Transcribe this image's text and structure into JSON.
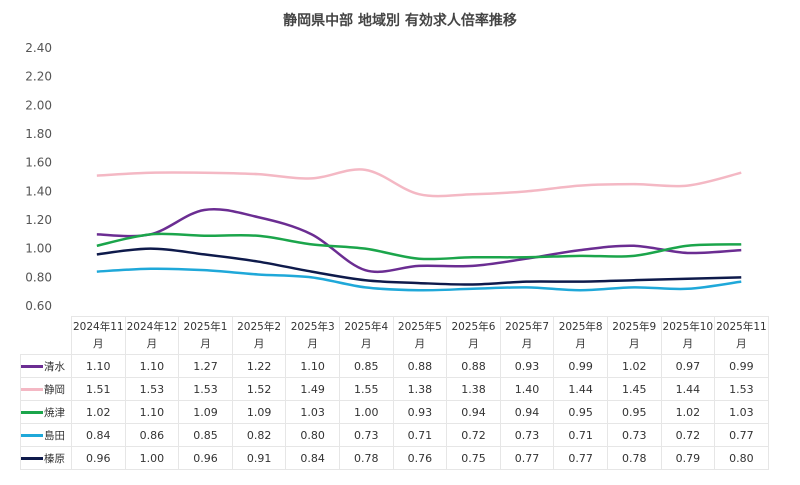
{
  "chart_data": {
    "type": "line",
    "title": "静岡県中部 地域別 有効求人倍率推移",
    "xlabel": "",
    "ylabel": "",
    "ylim": [
      0.6,
      2.4
    ],
    "yticks": [
      "2.40",
      "2.20",
      "2.00",
      "1.80",
      "1.60",
      "1.40",
      "1.20",
      "1.00",
      "0.80",
      "0.60"
    ],
    "grid": false,
    "legend": "table-bottom",
    "categories": [
      "2024年11月",
      "2024年12月",
      "2025年1月",
      "2025年2月",
      "2025年3月",
      "2025年4月",
      "2025年5月",
      "2025年6月",
      "2025年7月",
      "2025年8月",
      "2025年9月",
      "2025年10月",
      "2025年11月"
    ],
    "series": [
      {
        "name": "清水",
        "color": "#6b2d92",
        "values": [
          1.1,
          1.1,
          1.27,
          1.22,
          1.1,
          0.85,
          0.88,
          0.88,
          0.93,
          0.99,
          1.02,
          0.97,
          0.99
        ]
      },
      {
        "name": "静岡",
        "color": "#f4b8c4",
        "values": [
          1.51,
          1.53,
          1.53,
          1.52,
          1.49,
          1.55,
          1.38,
          1.38,
          1.4,
          1.44,
          1.45,
          1.44,
          1.53
        ]
      },
      {
        "name": "焼津",
        "color": "#1ba54b",
        "values": [
          1.02,
          1.1,
          1.09,
          1.09,
          1.03,
          1.0,
          0.93,
          0.94,
          0.94,
          0.95,
          0.95,
          1.02,
          1.03
        ]
      },
      {
        "name": "島田",
        "color": "#1fa8d9",
        "values": [
          0.84,
          0.86,
          0.85,
          0.82,
          0.8,
          0.73,
          0.71,
          0.72,
          0.73,
          0.71,
          0.73,
          0.72,
          0.77
        ]
      },
      {
        "name": "榛原",
        "color": "#0e1a4b",
        "values": [
          0.96,
          1.0,
          0.96,
          0.91,
          0.84,
          0.78,
          0.76,
          0.75,
          0.77,
          0.77,
          0.78,
          0.79,
          0.8
        ]
      }
    ]
  }
}
